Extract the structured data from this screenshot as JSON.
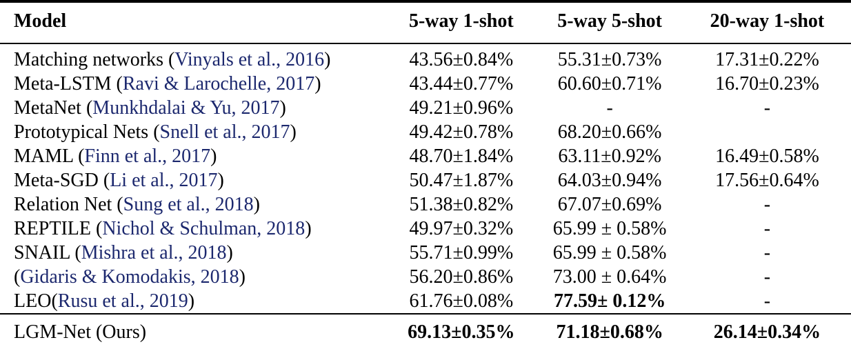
{
  "page": {
    "background_color": "#ffffff",
    "text_color": "#000000",
    "citation_color": "#1c286e"
  },
  "table": {
    "paren_open": "(",
    "paren_close": ")",
    "header": {
      "model": "Model",
      "cols": [
        "5-way 1-shot",
        "5-way 5-shot",
        "20-way 1-shot"
      ]
    },
    "rows": [
      {
        "name": "Matching networks ",
        "cite": "Vinyals et al., 2016",
        "values": [
          "43.56±0.84%",
          "55.31±0.73%",
          "17.31±0.22%"
        ],
        "bold": [
          false,
          false,
          false
        ],
        "final": false
      },
      {
        "name": "Meta-LSTM ",
        "cite": "Ravi & Larochelle, 2017",
        "values": [
          "43.44±0.77%",
          "60.60±0.71%",
          "16.70±0.23%"
        ],
        "bold": [
          false,
          false,
          false
        ],
        "final": false
      },
      {
        "name": "MetaNet ",
        "cite": "Munkhdalai & Yu, 2017",
        "values": [
          "49.21±0.96%",
          "-",
          "-"
        ],
        "bold": [
          false,
          false,
          false
        ],
        "final": false
      },
      {
        "name": "Prototypical Nets ",
        "cite": "Snell et al., 2017",
        "values": [
          "49.42±0.78%",
          "68.20±0.66%",
          ""
        ],
        "bold": [
          false,
          false,
          false
        ],
        "final": false
      },
      {
        "name": "MAML ",
        "cite": "Finn et al., 2017",
        "values": [
          "48.70±1.84%",
          "63.11±0.92%",
          "16.49±0.58%"
        ],
        "bold": [
          false,
          false,
          false
        ],
        "final": false
      },
      {
        "name": "Meta-SGD ",
        "cite": "Li et al., 2017",
        "values": [
          "50.47±1.87%",
          "64.03±0.94%",
          "17.56±0.64%"
        ],
        "bold": [
          false,
          false,
          false
        ],
        "final": false
      },
      {
        "name": "Relation Net ",
        "cite": "Sung et al., 2018",
        "values": [
          "51.38±0.82%",
          "67.07±0.69%",
          "-"
        ],
        "bold": [
          false,
          false,
          false
        ],
        "final": false
      },
      {
        "name": "REPTILE ",
        "cite": "Nichol & Schulman, 2018",
        "values": [
          "49.97±0.32%",
          "65.99 ± 0.58%",
          "-"
        ],
        "bold": [
          false,
          false,
          false
        ],
        "final": false
      },
      {
        "name": "SNAIL ",
        "cite": "Mishra et al., 2018",
        "values": [
          "55.71±0.99%",
          "65.99 ± 0.58%",
          "-"
        ],
        "bold": [
          false,
          false,
          false
        ],
        "final": false
      },
      {
        "name": "",
        "cite": "Gidaris & Komodakis, 2018",
        "values": [
          "56.20±0.86%",
          "73.00 ± 0.64%",
          "-"
        ],
        "bold": [
          false,
          false,
          false
        ],
        "final": false
      },
      {
        "name": "LEO",
        "cite": "Rusu et al., 2019",
        "values": [
          "61.76±0.08%",
          "77.59± 0.12%",
          "-"
        ],
        "bold": [
          false,
          true,
          false
        ],
        "final": false
      },
      {
        "name": "LGM-Net (Ours)",
        "cite": null,
        "values": [
          "69.13±0.35%",
          "71.18±0.68%",
          "26.14±0.34%"
        ],
        "bold": [
          true,
          true,
          true
        ],
        "final": true
      }
    ]
  }
}
